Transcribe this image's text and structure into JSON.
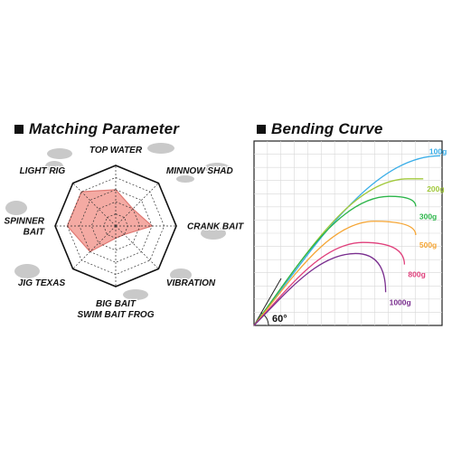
{
  "left_panel": {
    "title": "Matching Parameter"
  },
  "right_panel": {
    "title": "Bending Curve"
  },
  "chart_data": [
    {
      "type": "radar",
      "title": "Matching Parameter",
      "axes": [
        [
          "TOP WATER"
        ],
        [
          "MINNOW SHAD"
        ],
        [
          "CRANK BAIT"
        ],
        [
          "VIBRATION"
        ],
        [
          "BIG BAIT",
          "SWIM BAIT  FROG"
        ],
        [
          "JIG  TEXAS"
        ],
        [
          "SPINNER",
          "BAIT"
        ],
        [
          "LIGHT RIG"
        ]
      ],
      "max": 5,
      "rings": 5,
      "values": [
        3,
        2,
        3,
        1,
        1,
        3,
        4,
        4
      ],
      "fill_color": "#f4aaa3",
      "stroke_color": "#e07a74"
    },
    {
      "type": "line",
      "title": "Bending Curve",
      "angle_label": "60°",
      "grid": true,
      "series": [
        {
          "name": "100g",
          "color": "#3aaee8",
          "tip": [
            0.99,
            0.92
          ],
          "end": [
            0.99,
            0.92
          ]
        },
        {
          "name": "200g",
          "color": "#a2c93c",
          "tip": [
            0.82,
            0.795
          ],
          "end": [
            0.9,
            0.795
          ]
        },
        {
          "name": "300g",
          "color": "#2cb54a",
          "tip": [
            0.72,
            0.7
          ],
          "end": [
            0.86,
            0.645
          ]
        },
        {
          "name": "500g",
          "color": "#f5a534",
          "tip": [
            0.64,
            0.565
          ],
          "end": [
            0.86,
            0.49
          ]
        },
        {
          "name": "800g",
          "color": "#e0407c",
          "tip": [
            0.58,
            0.45
          ],
          "end": [
            0.8,
            0.33
          ]
        },
        {
          "name": "1000g",
          "color": "#7a2f8f",
          "tip": [
            0.54,
            0.39
          ],
          "end": [
            0.7,
            0.18
          ]
        }
      ]
    }
  ]
}
